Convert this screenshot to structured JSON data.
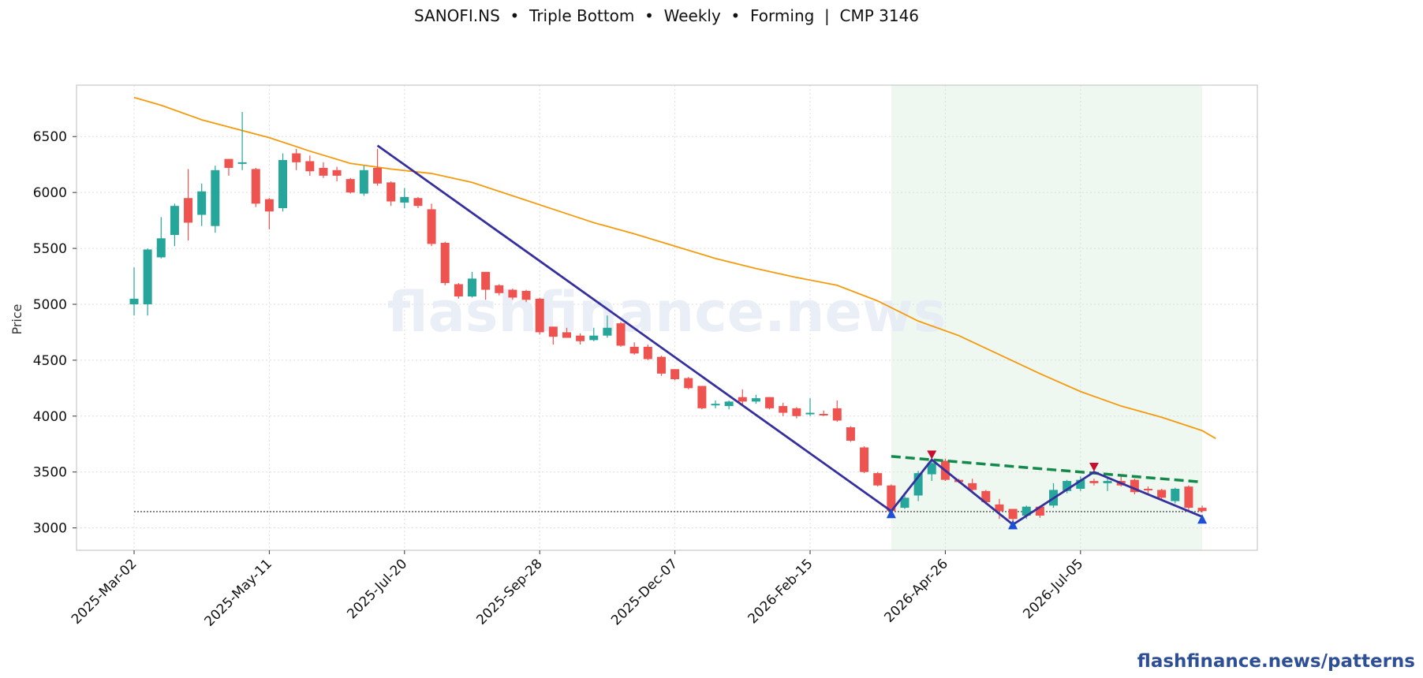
{
  "header": {
    "title": "SANOFI.NS  •  Triple Bottom  •  Weekly  •  Forming  |  CMP 3146"
  },
  "footer": {
    "text": "flashfinance.news/patterns"
  },
  "watermark": {
    "text": "flashfinance.news"
  },
  "colors": {
    "up": "#26a69a",
    "down": "#ef5350",
    "ma": "#f59a0c",
    "pattern": "#35309e",
    "neckline": "#138a4a",
    "zone": "#e8f5ec",
    "peak": "#c8102e",
    "trough": "#1e4fd8",
    "grid": "#dddddd"
  },
  "chart_data": {
    "type": "candlestick",
    "title": "SANOFI.NS  •  Triple Bottom  •  Weekly  •  Forming  |  CMP 3146",
    "xlabel": "",
    "ylabel": "Price",
    "ylim": [
      2800,
      6960
    ],
    "grid": true,
    "x_ticks": [
      "2025-Mar-02",
      "2025-May-11",
      "2025-Jul-20",
      "2025-Sep-28",
      "2025-Dec-07",
      "2026-Feb-15",
      "2026-Apr-26",
      "2026-Jul-05"
    ],
    "y_ticks": [
      3000,
      3500,
      4000,
      4500,
      5000,
      5500,
      6000,
      6500
    ],
    "week_start": "2025-03-02",
    "candles": [
      [
        5000,
        5050,
        4900,
        5330
      ],
      [
        5000,
        5490,
        4900,
        5500
      ],
      [
        5420,
        5590,
        5410,
        5780
      ],
      [
        5620,
        5880,
        5520,
        5900
      ],
      [
        5950,
        5730,
        5570,
        6210
      ],
      [
        5800,
        6010,
        5700,
        6080
      ],
      [
        5700,
        6200,
        5640,
        6240
      ],
      [
        6300,
        6220,
        6150,
        6300
      ],
      [
        6260,
        6270,
        6200,
        6720
      ],
      [
        6210,
        5900,
        5870,
        6220
      ],
      [
        5940,
        5830,
        5670,
        5950
      ],
      [
        5860,
        6290,
        5830,
        6350
      ],
      [
        6350,
        6270,
        6200,
        6390
      ],
      [
        6280,
        6190,
        6150,
        6330
      ],
      [
        6220,
        6150,
        6130,
        6270
      ],
      [
        6200,
        6150,
        6100,
        6230
      ],
      [
        6120,
        6000,
        5990,
        6130
      ],
      [
        5990,
        6200,
        5970,
        6240
      ],
      [
        6220,
        6080,
        6060,
        6390
      ],
      [
        6090,
        5920,
        5880,
        6100
      ],
      [
        5910,
        5960,
        5860,
        6040
      ],
      [
        5950,
        5880,
        5860,
        5960
      ],
      [
        5850,
        5540,
        5520,
        5900
      ],
      [
        5550,
        5190,
        5170,
        5560
      ],
      [
        5180,
        5070,
        5050,
        5190
      ],
      [
        5070,
        5230,
        5060,
        5290
      ],
      [
        5290,
        5130,
        5040,
        5290
      ],
      [
        5170,
        5100,
        5080,
        5180
      ],
      [
        5130,
        5060,
        5040,
        5140
      ],
      [
        5120,
        5040,
        5020,
        5130
      ],
      [
        5050,
        4750,
        4730,
        5060
      ],
      [
        4800,
        4710,
        4640,
        4800
      ],
      [
        4750,
        4700,
        4700,
        4790
      ],
      [
        4720,
        4670,
        4640,
        4740
      ],
      [
        4680,
        4720,
        4670,
        4790
      ],
      [
        4720,
        4790,
        4700,
        4900
      ],
      [
        4830,
        4630,
        4620,
        4840
      ],
      [
        4620,
        4560,
        4550,
        4660
      ],
      [
        4620,
        4510,
        4500,
        4640
      ],
      [
        4530,
        4380,
        4360,
        4540
      ],
      [
        4420,
        4330,
        4320,
        4420
      ],
      [
        4340,
        4250,
        4240,
        4350
      ],
      [
        4270,
        4070,
        4060,
        4270
      ],
      [
        4110,
        4110,
        4070,
        4140
      ],
      [
        4090,
        4130,
        4060,
        4140
      ],
      [
        4170,
        4130,
        4100,
        4240
      ],
      [
        4130,
        4160,
        4110,
        4190
      ],
      [
        4170,
        4070,
        4060,
        4170
      ],
      [
        4090,
        4030,
        4000,
        4120
      ],
      [
        4070,
        4000,
        3980,
        4080
      ],
      [
        4020,
        4030,
        4000,
        4160
      ],
      [
        4020,
        4010,
        4000,
        4050
      ],
      [
        4070,
        3960,
        3950,
        4140
      ],
      [
        3900,
        3780,
        3770,
        3910
      ],
      [
        3720,
        3500,
        3490,
        3730
      ],
      [
        3490,
        3380,
        3370,
        3500
      ],
      [
        3380,
        3150,
        3140,
        3390
      ],
      [
        3180,
        3270,
        3170,
        3290
      ],
      [
        3290,
        3490,
        3240,
        3510
      ],
      [
        3480,
        3580,
        3420,
        3620
      ],
      [
        3600,
        3430,
        3420,
        3620
      ],
      [
        3430,
        3410,
        3400,
        3440
      ],
      [
        3400,
        3340,
        3310,
        3440
      ],
      [
        3330,
        3230,
        3210,
        3340
      ],
      [
        3210,
        3150,
        3080,
        3260
      ],
      [
        3170,
        3080,
        3050,
        3170
      ],
      [
        3110,
        3190,
        3080,
        3200
      ],
      [
        3190,
        3110,
        3090,
        3200
      ],
      [
        3200,
        3340,
        3180,
        3400
      ],
      [
        3330,
        3420,
        3310,
        3430
      ],
      [
        3350,
        3430,
        3330,
        3460
      ],
      [
        3420,
        3400,
        3380,
        3440
      ],
      [
        3400,
        3420,
        3330,
        3450
      ],
      [
        3420,
        3380,
        3370,
        3460
      ],
      [
        3430,
        3320,
        3300,
        3440
      ],
      [
        3350,
        3340,
        3310,
        3370
      ],
      [
        3340,
        3270,
        3250,
        3350
      ],
      [
        3240,
        3350,
        3220,
        3360
      ],
      [
        3370,
        3180,
        3160,
        3380
      ],
      [
        3180,
        3150,
        3140,
        3200
      ]
    ],
    "moving_average": [
      [
        0,
        6850
      ],
      [
        2,
        6780
      ],
      [
        5,
        6650
      ],
      [
        10,
        6490
      ],
      [
        13,
        6370
      ],
      [
        16,
        6260
      ],
      [
        19,
        6210
      ],
      [
        22,
        6170
      ],
      [
        25,
        6090
      ],
      [
        28,
        5970
      ],
      [
        31,
        5850
      ],
      [
        34,
        5730
      ],
      [
        37,
        5630
      ],
      [
        40,
        5520
      ],
      [
        43,
        5410
      ],
      [
        46,
        5320
      ],
      [
        49,
        5240
      ],
      [
        52,
        5170
      ],
      [
        55,
        5030
      ],
      [
        58,
        4850
      ],
      [
        61,
        4720
      ],
      [
        64,
        4550
      ],
      [
        67,
        4380
      ],
      [
        70,
        4220
      ],
      [
        73,
        4090
      ],
      [
        76,
        3990
      ],
      [
        79,
        3870
      ],
      [
        80,
        3800
      ]
    ],
    "pattern_line": [
      [
        18,
        6420
      ],
      [
        56,
        3150
      ],
      [
        59,
        3610
      ],
      [
        65,
        3030
      ],
      [
        71,
        3500
      ],
      [
        79,
        3100
      ]
    ],
    "neckline": [
      [
        56,
        3640
      ],
      [
        79,
        3410
      ]
    ],
    "support": 3146,
    "pattern_zone": [
      56,
      79
    ],
    "peak_markers": [
      [
        59,
        3650
      ],
      [
        71,
        3540
      ]
    ],
    "trough_markers": [
      [
        56,
        3130
      ],
      [
        65,
        3030
      ],
      [
        79,
        3080
      ]
    ]
  }
}
